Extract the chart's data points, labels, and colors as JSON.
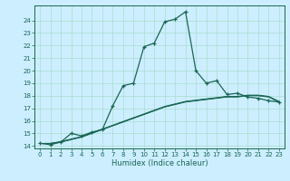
{
  "title": "",
  "xlabel": "Humidex (Indice chaleur)",
  "bg_color": "#cceeff",
  "grid_color": "#aaddcc",
  "line_color": "#1a6655",
  "xlim": [
    -0.5,
    23.5
  ],
  "ylim": [
    13.8,
    25.2
  ],
  "yticks": [
    14,
    15,
    16,
    17,
    18,
    19,
    20,
    21,
    22,
    23,
    24
  ],
  "xticks": [
    0,
    1,
    2,
    3,
    4,
    5,
    6,
    7,
    8,
    9,
    10,
    11,
    12,
    13,
    14,
    15,
    16,
    17,
    18,
    19,
    20,
    21,
    22,
    23
  ],
  "main_x": [
    0,
    1,
    2,
    3,
    4,
    5,
    6,
    7,
    8,
    9,
    10,
    11,
    12,
    13,
    14,
    15,
    16,
    17,
    18,
    19,
    20,
    21,
    22,
    23
  ],
  "main_y": [
    14.2,
    14.1,
    14.3,
    15.0,
    14.8,
    15.1,
    15.3,
    17.2,
    18.8,
    19.0,
    21.9,
    22.2,
    23.9,
    24.1,
    24.7,
    20.0,
    19.0,
    19.2,
    18.1,
    18.2,
    17.9,
    17.8,
    17.6,
    17.5
  ],
  "smooth1_x": [
    0,
    1,
    2,
    3,
    4,
    5,
    6,
    7,
    8,
    9,
    10,
    11,
    12,
    13,
    14,
    15,
    16,
    17,
    18,
    19,
    20,
    21,
    22,
    23
  ],
  "smooth1_y": [
    14.2,
    14.2,
    14.3,
    14.5,
    14.7,
    15.0,
    15.3,
    15.6,
    15.9,
    16.2,
    16.5,
    16.8,
    17.1,
    17.3,
    17.5,
    17.6,
    17.7,
    17.8,
    17.9,
    17.9,
    18.0,
    18.0,
    17.9,
    17.5
  ],
  "smooth2_x": [
    0,
    1,
    2,
    3,
    4,
    5,
    6,
    7,
    8,
    9,
    10,
    11,
    12,
    13,
    14,
    15,
    16,
    17,
    18,
    19,
    20,
    21,
    22,
    23
  ],
  "smooth2_y": [
    14.2,
    14.2,
    14.35,
    14.55,
    14.75,
    15.05,
    15.35,
    15.65,
    15.95,
    16.25,
    16.55,
    16.85,
    17.15,
    17.35,
    17.55,
    17.65,
    17.75,
    17.85,
    17.95,
    17.95,
    18.05,
    18.05,
    17.95,
    17.55
  ],
  "smooth3_x": [
    0,
    1,
    2,
    3,
    4,
    5,
    6,
    7,
    8,
    9,
    10,
    11,
    12,
    13,
    14,
    15,
    16,
    17,
    18,
    19,
    20,
    21,
    22,
    23
  ],
  "smooth3_y": [
    14.2,
    14.2,
    14.32,
    14.52,
    14.72,
    15.02,
    15.32,
    15.62,
    15.92,
    16.22,
    16.52,
    16.82,
    17.12,
    17.32,
    17.52,
    17.62,
    17.72,
    17.82,
    17.92,
    17.92,
    18.02,
    18.02,
    17.92,
    17.52
  ]
}
